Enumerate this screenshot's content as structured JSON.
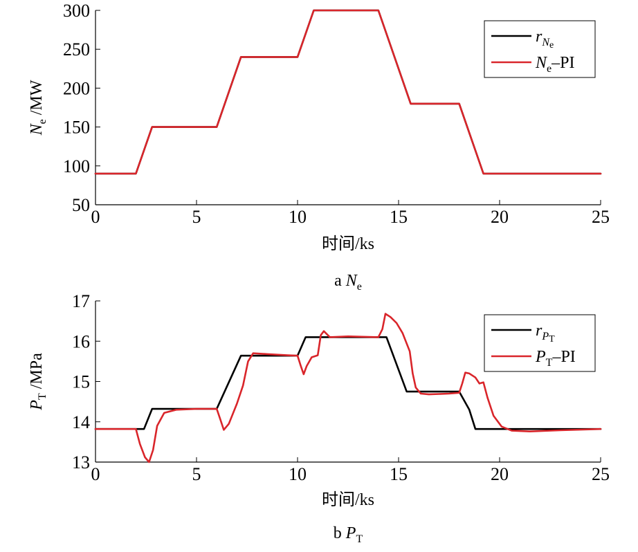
{
  "chart_data": [
    {
      "type": "line",
      "id": "ne",
      "caption": {
        "letter": "a",
        "symbol": "N",
        "subscript": "e"
      },
      "xlabel": "时间/ks",
      "ylabel": {
        "symbol": "N",
        "subscript": "e",
        "unit": " /MW"
      },
      "xlim": [
        0,
        25
      ],
      "ylim": [
        50,
        300
      ],
      "xticks": [
        "0",
        "5",
        "10",
        "15",
        "20",
        "25"
      ],
      "yticks": [
        "50",
        "100",
        "150",
        "200",
        "250",
        "300"
      ],
      "grid": false,
      "legend_position": "top-right",
      "series": [
        {
          "name": "r_Ne",
          "legend": {
            "symbol": "r",
            "subscript": "N",
            "subscript2": "e",
            "suffix": ""
          },
          "color": "#000000",
          "x": [
            0,
            2.0,
            2.8,
            6.0,
            7.2,
            10.0,
            10.8,
            14.0,
            15.6,
            18.0,
            19.2,
            25
          ],
          "y": [
            90,
            90,
            150,
            150,
            240,
            240,
            300,
            300,
            180,
            180,
            90,
            90
          ]
        },
        {
          "name": "Ne-PI",
          "legend": {
            "symbol": "N",
            "subscript": "e",
            "suffix": "–PI"
          },
          "color": "#d9252a",
          "x": [
            0,
            2.0,
            2.8,
            6.0,
            7.2,
            10.0,
            10.8,
            14.0,
            15.6,
            18.0,
            19.2,
            25
          ],
          "y": [
            90,
            90,
            150,
            150,
            240,
            240,
            300,
            300,
            180,
            180,
            90,
            90
          ]
        }
      ]
    },
    {
      "type": "line",
      "id": "pt",
      "caption": {
        "letter": "b",
        "symbol": "P",
        "subscript": "T"
      },
      "xlabel": "时间/ks",
      "ylabel": {
        "symbol": "P",
        "subscript": "T",
        "unit": " /MPa"
      },
      "xlim": [
        0,
        25
      ],
      "ylim": [
        13,
        17
      ],
      "xticks": [
        "0",
        "5",
        "10",
        "15",
        "20",
        "25"
      ],
      "yticks": [
        "13",
        "14",
        "15",
        "16",
        "17"
      ],
      "grid": false,
      "legend_position": "top-right",
      "series": [
        {
          "name": "r_PT",
          "legend": {
            "symbol": "r",
            "subscript": "P",
            "subscript2": "T",
            "suffix": ""
          },
          "color": "#000000",
          "x": [
            0,
            2.4,
            2.8,
            6.0,
            7.2,
            10.0,
            10.4,
            14.4,
            15.4,
            18.0,
            18.5,
            18.8,
            25
          ],
          "y": [
            13.82,
            13.82,
            14.32,
            14.32,
            15.64,
            15.64,
            16.1,
            16.1,
            14.75,
            14.75,
            14.3,
            13.82,
            13.82
          ]
        },
        {
          "name": "PT-PI",
          "legend": {
            "symbol": "P",
            "subscript": "T",
            "suffix": "–PI"
          },
          "color": "#d9252a",
          "x": [
            0,
            2.0,
            2.2,
            2.45,
            2.65,
            2.85,
            3.05,
            3.4,
            4.0,
            5.0,
            6.0,
            6.15,
            6.35,
            6.6,
            7.0,
            7.3,
            7.55,
            7.8,
            8.5,
            9.5,
            10.0,
            10.15,
            10.3,
            10.45,
            10.7,
            11.0,
            11.15,
            11.3,
            11.6,
            12.5,
            14.0,
            14.2,
            14.35,
            14.6,
            14.9,
            15.2,
            15.55,
            15.7,
            15.85,
            16.1,
            16.5,
            17.5,
            18.0,
            18.15,
            18.3,
            18.5,
            18.8,
            19.0,
            19.2,
            19.4,
            19.7,
            20.1,
            20.6,
            21.5,
            23.0,
            25.0
          ],
          "y": [
            13.82,
            13.82,
            13.45,
            13.12,
            13.0,
            13.3,
            13.9,
            14.22,
            14.3,
            14.32,
            14.32,
            14.1,
            13.8,
            13.95,
            14.45,
            14.9,
            15.5,
            15.7,
            15.68,
            15.65,
            15.64,
            15.4,
            15.18,
            15.38,
            15.6,
            15.65,
            16.15,
            16.25,
            16.1,
            16.12,
            16.1,
            16.3,
            16.68,
            16.6,
            16.45,
            16.2,
            15.75,
            15.2,
            14.85,
            14.7,
            14.68,
            14.7,
            14.72,
            14.95,
            15.22,
            15.2,
            15.1,
            14.95,
            14.98,
            14.6,
            14.15,
            13.88,
            13.78,
            13.76,
            13.79,
            13.82
          ]
        }
      ]
    }
  ]
}
